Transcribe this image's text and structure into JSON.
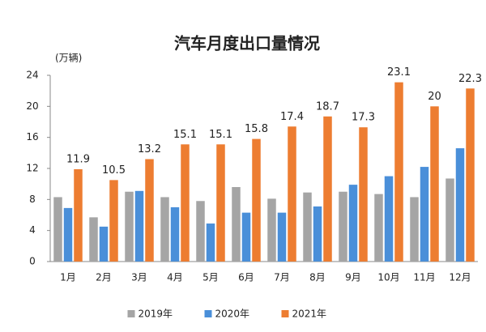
{
  "chart_data": {
    "type": "bar",
    "title": "汽车月度出口量情况",
    "y_label": "(万辆)",
    "categories": [
      "1月",
      "2月",
      "3月",
      "4月",
      "5月",
      "6月",
      "7月",
      "8月",
      "9月",
      "10月",
      "11月",
      "12月"
    ],
    "series": [
      {
        "name": "2019年",
        "color": "#a5a5a5",
        "values": [
          8.3,
          5.7,
          9.0,
          8.3,
          7.8,
          9.6,
          8.1,
          8.9,
          9.0,
          8.7,
          8.3,
          10.7
        ]
      },
      {
        "name": "2020年",
        "color": "#4a8fd9",
        "values": [
          6.9,
          4.5,
          9.1,
          7.0,
          4.9,
          6.3,
          6.3,
          7.1,
          9.9,
          11.0,
          12.2,
          14.6
        ]
      },
      {
        "name": "2021年",
        "color": "#ed7d31",
        "values": [
          11.9,
          10.5,
          13.2,
          15.1,
          15.1,
          15.8,
          17.4,
          18.7,
          17.3,
          23.1,
          20,
          22.3
        ],
        "show_labels": true
      }
    ],
    "ylim": [
      0,
      24
    ],
    "yticks": [
      0,
      4,
      8,
      12,
      16,
      20,
      24
    ],
    "grid": false,
    "legend": "bottom"
  }
}
